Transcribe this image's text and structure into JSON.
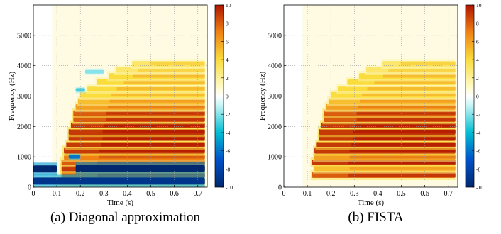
{
  "chart_data": [
    {
      "type": "heatmap",
      "caption": "(a) Diagonal approximation",
      "xlabel": "Time (s)",
      "ylabel": "Frequency (Hz)",
      "xlim": [
        0,
        0.74
      ],
      "ylim": [
        0,
        6000
      ],
      "x_ticks": [
        "0",
        "0.1",
        "0.2",
        "0.3",
        "0.4",
        "0.5",
        "0.6",
        "0.7"
      ],
      "y_ticks": [
        "0",
        "1000",
        "2000",
        "3000",
        "4000",
        "5000"
      ],
      "x_tick_values": [
        0,
        0.1,
        0.2,
        0.3,
        0.4,
        0.5,
        0.6,
        0.7
      ],
      "y_tick_values": [
        0,
        1000,
        2000,
        3000,
        4000,
        5000
      ],
      "grid": true,
      "colorbar": {
        "range": [
          -10,
          10
        ],
        "ticks": [
          "10",
          "8",
          "6",
          "4",
          "2",
          "0",
          "-2",
          "-4",
          "-6",
          "-8",
          "-10"
        ]
      },
      "harmonics": [
        {
          "f": 200,
          "start": 0.12,
          "value": 7
        },
        {
          "f": 400,
          "start": 0.12,
          "value": 8
        },
        {
          "f": 620,
          "start": 0.12,
          "value": 9
        },
        {
          "f": 820,
          "start": 0.12,
          "value": 8
        },
        {
          "f": 1000,
          "start": 0.13,
          "value": 7
        },
        {
          "f": 1200,
          "start": 0.13,
          "value": 9
        },
        {
          "f": 1400,
          "start": 0.14,
          "value": 9
        },
        {
          "f": 1620,
          "start": 0.15,
          "value": 9
        },
        {
          "f": 1820,
          "start": 0.15,
          "value": 9
        },
        {
          "f": 2040,
          "start": 0.16,
          "value": 9
        },
        {
          "f": 2240,
          "start": 0.17,
          "value": 8
        },
        {
          "f": 2440,
          "start": 0.17,
          "value": 8
        },
        {
          "f": 2640,
          "start": 0.18,
          "value": 6
        },
        {
          "f": 2840,
          "start": 0.19,
          "value": 5
        },
        {
          "f": 3040,
          "start": 0.2,
          "value": 4
        },
        {
          "f": 3240,
          "start": 0.23,
          "value": 4
        },
        {
          "f": 3460,
          "start": 0.27,
          "value": 4
        },
        {
          "f": 3660,
          "start": 0.32,
          "value": 4
        },
        {
          "f": 3860,
          "start": 0.35,
          "value": 3
        },
        {
          "f": 4060,
          "start": 0.42,
          "value": 3
        }
      ],
      "negative_bands": [
        {
          "f": 200,
          "start": 0.0,
          "end": 0.73,
          "value": -9
        },
        {
          "f": 600,
          "start": 0.0,
          "end": 0.1,
          "value": -10
        },
        {
          "f": 620,
          "start": 0.18,
          "end": 0.73,
          "value": -10
        },
        {
          "f": 1000,
          "start": 0.15,
          "end": 0.2,
          "value": -6
        },
        {
          "f": 3200,
          "start": 0.18,
          "end": 0.22,
          "value": -3
        },
        {
          "f": 3800,
          "start": 0.22,
          "end": 0.3,
          "value": -2
        }
      ]
    },
    {
      "type": "heatmap",
      "caption": "(b) FISTA",
      "xlabel": "Time (s)",
      "ylabel": "Frequency (Hz)",
      "xlim": [
        0,
        0.74
      ],
      "ylim": [
        0,
        6000
      ],
      "x_ticks": [
        "0",
        "0.1",
        "0.2",
        "0.3",
        "0.4",
        "0.5",
        "0.6",
        "0.7"
      ],
      "y_ticks": [
        "0",
        "1000",
        "2000",
        "3000",
        "4000",
        "5000"
      ],
      "x_tick_values": [
        0,
        0.1,
        0.2,
        0.3,
        0.4,
        0.5,
        0.6,
        0.7
      ],
      "y_tick_values": [
        0,
        1000,
        2000,
        3000,
        4000,
        5000
      ],
      "grid": true,
      "colorbar": {
        "range": [
          -10,
          10
        ],
        "ticks": [
          "10",
          "8",
          "6",
          "4",
          "2",
          "0",
          "-2",
          "-4",
          "-6",
          "-8",
          "-10"
        ]
      },
      "harmonics": [
        {
          "f": 400,
          "start": 0.12,
          "value": 8
        },
        {
          "f": 620,
          "start": 0.13,
          "value": 5
        },
        {
          "f": 820,
          "start": 0.12,
          "value": 9
        },
        {
          "f": 1000,
          "start": 0.13,
          "value": 6
        },
        {
          "f": 1200,
          "start": 0.13,
          "value": 9
        },
        {
          "f": 1400,
          "start": 0.14,
          "value": 9
        },
        {
          "f": 1620,
          "start": 0.15,
          "value": 9
        },
        {
          "f": 1820,
          "start": 0.15,
          "value": 9
        },
        {
          "f": 2040,
          "start": 0.16,
          "value": 9
        },
        {
          "f": 2240,
          "start": 0.17,
          "value": 8
        },
        {
          "f": 2440,
          "start": 0.17,
          "value": 8
        },
        {
          "f": 2640,
          "start": 0.18,
          "value": 6
        },
        {
          "f": 2840,
          "start": 0.19,
          "value": 5
        },
        {
          "f": 3040,
          "start": 0.2,
          "value": 4
        },
        {
          "f": 3240,
          "start": 0.23,
          "value": 4
        },
        {
          "f": 3460,
          "start": 0.27,
          "value": 4
        },
        {
          "f": 3660,
          "start": 0.32,
          "value": 4
        },
        {
          "f": 3860,
          "start": 0.35,
          "value": 3
        },
        {
          "f": 4060,
          "start": 0.42,
          "value": 3
        }
      ],
      "negative_bands": []
    }
  ]
}
